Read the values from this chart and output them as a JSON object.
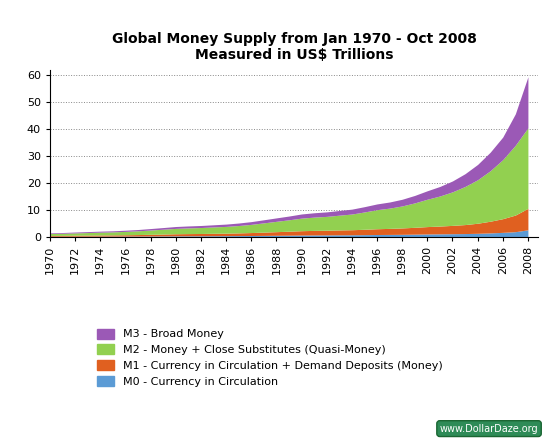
{
  "title_line1": "Global Money Supply from Jan 1970 - Oct 2008",
  "title_line2": "Measured in US$ Trillions",
  "years": [
    1970,
    1971,
    1972,
    1973,
    1974,
    1975,
    1976,
    1977,
    1978,
    1979,
    1980,
    1981,
    1982,
    1983,
    1984,
    1985,
    1986,
    1987,
    1988,
    1989,
    1990,
    1991,
    1992,
    1993,
    1994,
    1995,
    1996,
    1997,
    1998,
    1999,
    2000,
    2001,
    2002,
    2003,
    2004,
    2005,
    2006,
    2007,
    2008
  ],
  "M0": [
    0.1,
    0.11,
    0.12,
    0.13,
    0.14,
    0.15,
    0.16,
    0.18,
    0.2,
    0.22,
    0.25,
    0.27,
    0.28,
    0.3,
    0.32,
    0.35,
    0.38,
    0.42,
    0.46,
    0.5,
    0.55,
    0.58,
    0.6,
    0.63,
    0.65,
    0.7,
    0.75,
    0.78,
    0.82,
    0.88,
    0.95,
    1.0,
    1.05,
    1.1,
    1.2,
    1.35,
    1.55,
    1.8,
    2.5
  ],
  "M1": [
    0.3,
    0.33,
    0.37,
    0.4,
    0.43,
    0.46,
    0.5,
    0.55,
    0.62,
    0.7,
    0.78,
    0.82,
    0.85,
    0.9,
    0.93,
    1.0,
    1.1,
    1.22,
    1.35,
    1.48,
    1.62,
    1.7,
    1.75,
    1.82,
    1.88,
    2.0,
    2.15,
    2.25,
    2.38,
    2.55,
    2.75,
    2.9,
    3.1,
    3.35,
    3.75,
    4.35,
    5.1,
    6.2,
    8.0
  ],
  "M2": [
    0.7,
    0.77,
    0.86,
    0.95,
    1.05,
    1.12,
    1.25,
    1.4,
    1.6,
    1.8,
    2.0,
    2.12,
    2.22,
    2.37,
    2.52,
    2.75,
    3.05,
    3.45,
    3.85,
    4.25,
    4.68,
    4.95,
    5.15,
    5.5,
    5.85,
    6.45,
    7.1,
    7.55,
    8.2,
    9.1,
    10.2,
    11.2,
    12.5,
    14.2,
    16.2,
    18.8,
    22.0,
    26.0,
    30.0
  ],
  "M3": [
    0.25,
    0.28,
    0.32,
    0.35,
    0.38,
    0.4,
    0.44,
    0.48,
    0.55,
    0.62,
    0.7,
    0.73,
    0.76,
    0.8,
    0.86,
    0.93,
    1.02,
    1.15,
    1.28,
    1.4,
    1.55,
    1.62,
    1.68,
    1.75,
    1.82,
    1.97,
    2.14,
    2.28,
    2.48,
    2.78,
    3.15,
    3.55,
    4.05,
    4.75,
    5.7,
    6.9,
    8.4,
    11.7,
    19.0
  ],
  "color_M0": "#5b9bd5",
  "color_M1": "#e06020",
  "color_M2": "#92d050",
  "color_M3": "#9b59b6",
  "legend_labels": [
    "M3 - Broad Money",
    "M2 - Money + Close Substitutes (Quasi-Money)",
    "M1 - Currency in Circulation + Demand Deposits (Money)",
    "M0 - Currency in Circulation"
  ],
  "xlim": [
    1970,
    2008.83
  ],
  "ylim": [
    0,
    62
  ],
  "yticks": [
    0,
    10,
    20,
    30,
    40,
    50,
    60
  ],
  "xticks": [
    1970,
    1972,
    1974,
    1976,
    1978,
    1980,
    1982,
    1984,
    1986,
    1988,
    1990,
    1992,
    1994,
    1996,
    1998,
    2000,
    2002,
    2004,
    2006,
    2008
  ],
  "watermark_text": "www.DollarDaze.org",
  "bg_color": "#ffffff",
  "grid_color": "#888888"
}
